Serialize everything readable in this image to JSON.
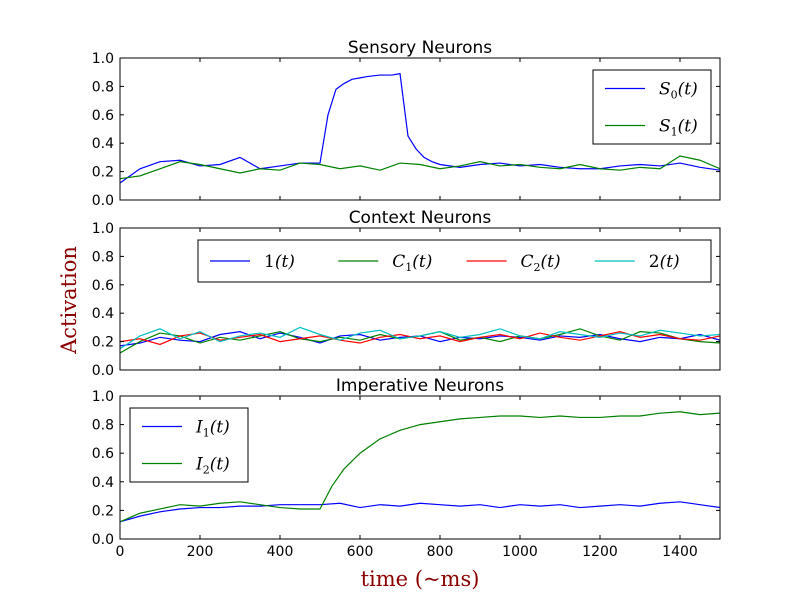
{
  "figure": {
    "ylabel": "Activation",
    "xlabel": "time (~ms)",
    "label_color": "#8b0000"
  },
  "chart_data": [
    {
      "type": "line",
      "title": "Sensory Neurons",
      "xlim": [
        0,
        1500
      ],
      "ylim": [
        0,
        1.0
      ],
      "xticks": [
        "0",
        "200",
        "400",
        "600",
        "800",
        "1000",
        "1200",
        "1400"
      ],
      "yticks": [
        "0.0",
        "0.2",
        "0.4",
        "0.6",
        "0.8",
        "1.0"
      ],
      "show_xtick_labels": false,
      "legend_placement": "upper-right",
      "legend_columns": 1,
      "series": [
        {
          "name": "S0(t)",
          "legend_main": "S",
          "legend_sub": "0",
          "legend_tail": "(t)",
          "legend_script": true,
          "color": "#0000ff",
          "x": [
            0,
            50,
            100,
            150,
            200,
            250,
            300,
            350,
            400,
            450,
            500,
            520,
            540,
            560,
            580,
            600,
            620,
            650,
            680,
            700,
            720,
            740,
            760,
            780,
            800,
            850,
            900,
            950,
            1000,
            1050,
            1100,
            1150,
            1200,
            1250,
            1300,
            1350,
            1400,
            1450,
            1500
          ],
          "y": [
            0.12,
            0.22,
            0.27,
            0.28,
            0.24,
            0.25,
            0.3,
            0.22,
            0.24,
            0.26,
            0.26,
            0.6,
            0.78,
            0.82,
            0.85,
            0.86,
            0.87,
            0.88,
            0.88,
            0.89,
            0.45,
            0.36,
            0.3,
            0.27,
            0.25,
            0.23,
            0.25,
            0.26,
            0.24,
            0.25,
            0.23,
            0.22,
            0.22,
            0.24,
            0.25,
            0.24,
            0.26,
            0.23,
            0.21
          ]
        },
        {
          "name": "S1(t)",
          "legend_main": "S",
          "legend_sub": "1",
          "legend_tail": "(t)",
          "legend_script": true,
          "color": "#008000",
          "x": [
            0,
            50,
            100,
            150,
            200,
            250,
            300,
            350,
            400,
            450,
            500,
            550,
            600,
            650,
            700,
            750,
            800,
            850,
            900,
            950,
            1000,
            1050,
            1100,
            1150,
            1200,
            1250,
            1300,
            1350,
            1400,
            1450,
            1500
          ],
          "y": [
            0.15,
            0.17,
            0.22,
            0.27,
            0.25,
            0.22,
            0.19,
            0.22,
            0.21,
            0.26,
            0.25,
            0.22,
            0.24,
            0.21,
            0.26,
            0.25,
            0.22,
            0.24,
            0.27,
            0.24,
            0.25,
            0.23,
            0.22,
            0.25,
            0.22,
            0.21,
            0.23,
            0.22,
            0.31,
            0.28,
            0.22
          ]
        }
      ]
    },
    {
      "type": "line",
      "title": "Context Neurons",
      "xlim": [
        0,
        1500
      ],
      "ylim": [
        0,
        1.0
      ],
      "xticks": [
        "0",
        "200",
        "400",
        "600",
        "800",
        "1000",
        "1200",
        "1400"
      ],
      "yticks": [
        "0.0",
        "0.2",
        "0.4",
        "0.6",
        "0.8",
        "1.0"
      ],
      "show_xtick_labels": false,
      "legend_placement": "upper-right",
      "legend_columns": 4,
      "series": [
        {
          "name": "1(t)",
          "legend_main": "1",
          "legend_sub": "",
          "legend_tail": "(t)",
          "legend_script": false,
          "color": "#0000ff",
          "x": [
            0,
            50,
            100,
            150,
            200,
            250,
            300,
            350,
            400,
            450,
            500,
            550,
            600,
            650,
            700,
            750,
            800,
            850,
            900,
            950,
            1000,
            1050,
            1100,
            1150,
            1200,
            1250,
            1300,
            1350,
            1400,
            1450,
            1500
          ],
          "y": [
            0.17,
            0.19,
            0.23,
            0.21,
            0.2,
            0.25,
            0.27,
            0.22,
            0.26,
            0.23,
            0.19,
            0.24,
            0.25,
            0.21,
            0.23,
            0.24,
            0.2,
            0.23,
            0.22,
            0.24,
            0.23,
            0.21,
            0.24,
            0.23,
            0.25,
            0.22,
            0.2,
            0.23,
            0.22,
            0.25,
            0.21
          ]
        },
        {
          "name": "C1(t)",
          "legend_main": "C",
          "legend_sub": "1",
          "legend_tail": "(t)",
          "legend_script": true,
          "color": "#008000",
          "x": [
            0,
            50,
            100,
            150,
            200,
            250,
            300,
            350,
            400,
            450,
            500,
            550,
            600,
            650,
            700,
            750,
            800,
            850,
            900,
            950,
            1000,
            1050,
            1100,
            1150,
            1200,
            1250,
            1300,
            1350,
            1400,
            1450,
            1500
          ],
          "y": [
            0.12,
            0.2,
            0.26,
            0.24,
            0.19,
            0.23,
            0.21,
            0.24,
            0.27,
            0.22,
            0.2,
            0.23,
            0.21,
            0.25,
            0.22,
            0.24,
            0.27,
            0.21,
            0.23,
            0.2,
            0.24,
            0.22,
            0.25,
            0.29,
            0.24,
            0.21,
            0.27,
            0.26,
            0.22,
            0.2,
            0.19
          ]
        },
        {
          "name": "C2(t)",
          "legend_main": "C",
          "legend_sub": "2",
          "legend_tail": "(t)",
          "legend_script": true,
          "color": "#ff0000",
          "x": [
            0,
            50,
            100,
            150,
            200,
            250,
            300,
            350,
            400,
            450,
            500,
            550,
            600,
            650,
            700,
            750,
            800,
            850,
            900,
            950,
            1000,
            1050,
            1100,
            1150,
            1200,
            1250,
            1300,
            1350,
            1400,
            1450,
            1500
          ],
          "y": [
            0.2,
            0.22,
            0.18,
            0.24,
            0.26,
            0.21,
            0.23,
            0.25,
            0.2,
            0.22,
            0.24,
            0.21,
            0.19,
            0.23,
            0.25,
            0.22,
            0.24,
            0.2,
            0.23,
            0.25,
            0.22,
            0.26,
            0.23,
            0.21,
            0.24,
            0.27,
            0.23,
            0.25,
            0.22,
            0.21,
            0.24
          ]
        },
        {
          "name": "2(t)",
          "legend_main": "2",
          "legend_sub": "",
          "legend_tail": "(t)",
          "legend_script": false,
          "color": "#00bfbf",
          "x": [
            0,
            50,
            100,
            150,
            200,
            250,
            300,
            350,
            400,
            450,
            500,
            550,
            600,
            650,
            700,
            750,
            800,
            850,
            900,
            950,
            1000,
            1050,
            1100,
            1150,
            1200,
            1250,
            1300,
            1350,
            1400,
            1450,
            1500
          ],
          "y": [
            0.15,
            0.24,
            0.29,
            0.22,
            0.27,
            0.2,
            0.24,
            0.26,
            0.23,
            0.3,
            0.25,
            0.21,
            0.26,
            0.28,
            0.22,
            0.24,
            0.27,
            0.23,
            0.25,
            0.29,
            0.24,
            0.22,
            0.27,
            0.25,
            0.23,
            0.26,
            0.24,
            0.28,
            0.26,
            0.24,
            0.25
          ]
        }
      ]
    },
    {
      "type": "line",
      "title": "Imperative Neurons",
      "xlim": [
        0,
        1500
      ],
      "ylim": [
        0,
        1.0
      ],
      "xticks": [
        "0",
        "200",
        "400",
        "600",
        "800",
        "1000",
        "1200",
        "1400"
      ],
      "yticks": [
        "0.0",
        "0.2",
        "0.4",
        "0.6",
        "0.8",
        "1.0"
      ],
      "show_xtick_labels": true,
      "legend_placement": "upper-left",
      "legend_columns": 1,
      "series": [
        {
          "name": "I1(t)",
          "legend_main": "I",
          "legend_sub": "1",
          "legend_tail": "(t)",
          "legend_script": true,
          "color": "#0000ff",
          "x": [
            0,
            50,
            100,
            150,
            200,
            250,
            300,
            350,
            400,
            450,
            500,
            550,
            600,
            650,
            700,
            750,
            800,
            850,
            900,
            950,
            1000,
            1050,
            1100,
            1150,
            1200,
            1250,
            1300,
            1350,
            1400,
            1450,
            1500
          ],
          "y": [
            0.12,
            0.16,
            0.19,
            0.21,
            0.22,
            0.22,
            0.23,
            0.23,
            0.24,
            0.24,
            0.24,
            0.25,
            0.22,
            0.24,
            0.23,
            0.25,
            0.24,
            0.23,
            0.24,
            0.22,
            0.24,
            0.23,
            0.24,
            0.22,
            0.23,
            0.24,
            0.23,
            0.25,
            0.26,
            0.24,
            0.22
          ]
        },
        {
          "name": "I2(t)",
          "legend_main": "I",
          "legend_sub": "2",
          "legend_tail": "(t)",
          "legend_script": true,
          "color": "#008000",
          "x": [
            0,
            50,
            100,
            150,
            200,
            250,
            300,
            350,
            400,
            450,
            500,
            530,
            560,
            600,
            650,
            700,
            750,
            800,
            850,
            900,
            950,
            1000,
            1050,
            1100,
            1150,
            1200,
            1250,
            1300,
            1350,
            1400,
            1450,
            1500
          ],
          "y": [
            0.12,
            0.18,
            0.21,
            0.24,
            0.23,
            0.25,
            0.26,
            0.24,
            0.22,
            0.21,
            0.21,
            0.37,
            0.49,
            0.6,
            0.7,
            0.76,
            0.8,
            0.82,
            0.84,
            0.85,
            0.86,
            0.86,
            0.85,
            0.86,
            0.85,
            0.85,
            0.86,
            0.86,
            0.88,
            0.89,
            0.87,
            0.88
          ]
        }
      ]
    }
  ]
}
